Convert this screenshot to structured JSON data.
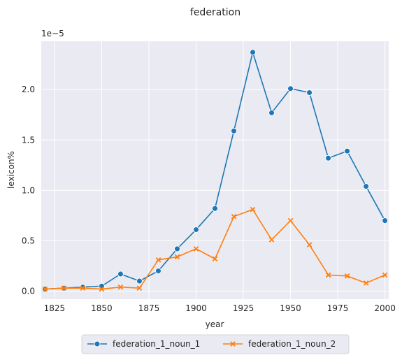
{
  "chart_data": {
    "type": "line",
    "title": "federation",
    "xlabel": "year",
    "ylabel": "lexicon%",
    "y_multiplier_label": "1e−5",
    "xlim": [
      1818,
      2002
    ],
    "ylim": [
      -0.08,
      2.48
    ],
    "x_ticks": [
      1825,
      1850,
      1875,
      1900,
      1925,
      1950,
      1975,
      2000
    ],
    "x_tick_labels": [
      "1825",
      "1850",
      "1875",
      "1900",
      "1925",
      "1950",
      "1975",
      "2000"
    ],
    "y_ticks": [
      0.0,
      0.5,
      1.0,
      1.5,
      2.0
    ],
    "y_tick_labels": [
      "0.0",
      "0.5",
      "1.0",
      "1.5",
      "2.0"
    ],
    "grid": true,
    "legend_placement": "bottom-center",
    "x": [
      1820,
      1830,
      1840,
      1850,
      1860,
      1870,
      1880,
      1890,
      1900,
      1910,
      1920,
      1930,
      1940,
      1950,
      1960,
      1970,
      1980,
      1990,
      2000
    ],
    "series": [
      {
        "name": "federation_1_noun_1",
        "color": "#1f77b4",
        "marker": "circle",
        "values": [
          0.02,
          0.03,
          0.04,
          0.05,
          0.17,
          0.1,
          0.2,
          0.42,
          0.61,
          0.82,
          1.59,
          2.37,
          1.77,
          2.01,
          1.97,
          1.32,
          1.39,
          1.04,
          0.7
        ]
      },
      {
        "name": "federation_1_noun_2",
        "color": "#ff7f0e",
        "marker": "x",
        "values": [
          0.02,
          0.03,
          0.03,
          0.02,
          0.04,
          0.03,
          0.31,
          0.34,
          0.42,
          0.32,
          0.74,
          0.81,
          0.51,
          0.7,
          0.46,
          0.16,
          0.15,
          0.08,
          0.16
        ]
      }
    ]
  }
}
